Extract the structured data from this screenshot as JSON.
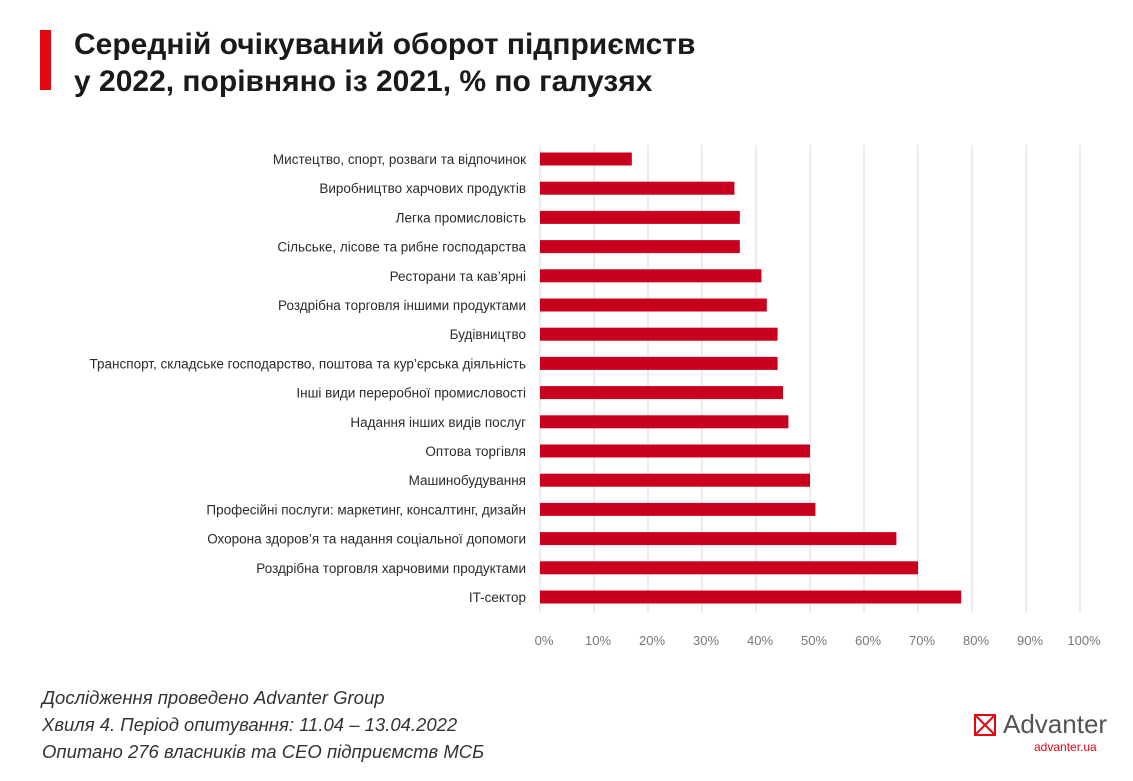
{
  "title": {
    "line1": "Середній очікуваний оборот підприємств",
    "line2": "у 2022, порівняно із 2021, % по галузях"
  },
  "footer": {
    "line1": "Дослідження проведено Advanter Group",
    "line2": "Хвиля 4. Період опитування: 11.04 – 13.04.2022",
    "line3": "Опитано 276 власників та CEO підприємств МСБ"
  },
  "logo": {
    "name": "Advanter",
    "url": "advanter.ua",
    "icon": "envelope-x-icon"
  },
  "colors": {
    "bar": "#c8001e",
    "accent": "#e30613",
    "grid": "#d9d9d9"
  },
  "chart_data": {
    "type": "bar",
    "orientation": "horizontal",
    "categories": [
      "Мистецтво, спорт, розваги та відпочинок",
      "Виробництво харчових продуктів",
      "Легка промисловість",
      "Сільське, лісове та рибне господарства",
      "Ресторани та кав’ярні",
      "Роздрібна торговля іншими продуктами",
      "Будівництво",
      "Транспорт, складське господарство, поштова та кур’єрська діяльність",
      "Інші види переробної промисловості",
      "Надання інших видів послуг",
      "Оптова торгівля",
      "Машинобудування",
      "Професійні послуги: маркетинг, консалтинг, дизайн",
      "Охорона здоров’я та надання соціальної допомоги",
      "Роздрібна торговля харчовими продуктами",
      "IT-сектор"
    ],
    "values": [
      17,
      36,
      37,
      37,
      41,
      42,
      44,
      44,
      45,
      46,
      50,
      50,
      51,
      66,
      70,
      78
    ],
    "xlim": [
      0,
      100
    ],
    "ticks": [
      "0%",
      "10%",
      "20%",
      "30%",
      "40%",
      "50%",
      "60%",
      "70%",
      "80%",
      "90%",
      "100%"
    ],
    "tick_values": [
      0,
      10,
      20,
      30,
      40,
      50,
      60,
      70,
      80,
      90,
      100
    ],
    "grid": true,
    "legend": "none"
  }
}
